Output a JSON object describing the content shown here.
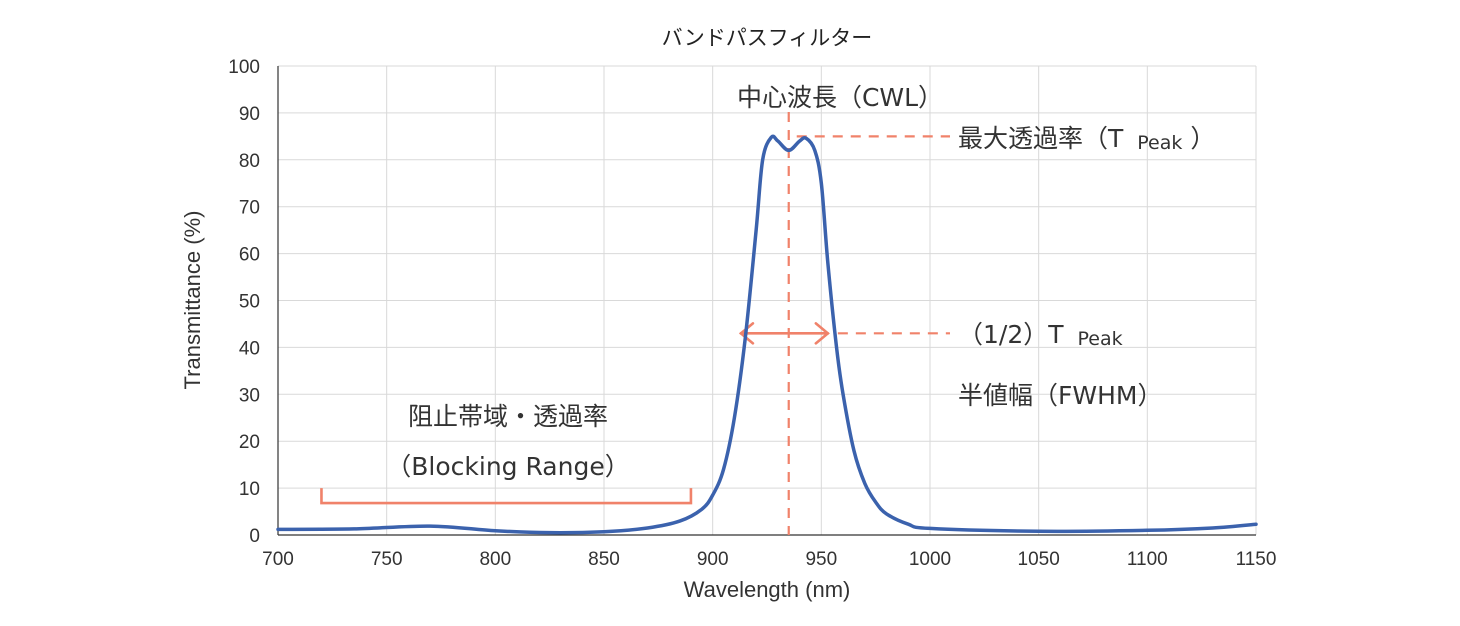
{
  "chart_data": {
    "type": "line",
    "title": "バンドパスフィルター",
    "xlabel": "Wavelength (nm)",
    "ylabel": "Transmittance (%)",
    "xlim": [
      700,
      1150
    ],
    "ylim": [
      0,
      100
    ],
    "x_ticks": [
      700,
      750,
      800,
      850,
      900,
      950,
      1000,
      1050,
      1100,
      1150
    ],
    "y_ticks": [
      0,
      10,
      20,
      30,
      40,
      50,
      60,
      70,
      80,
      90,
      100
    ],
    "x_tick_labels": [
      "700",
      "750",
      "800",
      "850",
      "900",
      "950",
      "1000",
      "1050",
      "1100",
      "1150"
    ],
    "y_tick_labels": [
      "0",
      "10",
      "20",
      "30",
      "40",
      "50",
      "60",
      "70",
      "80",
      "90",
      "100"
    ],
    "grid": true,
    "series": [
      {
        "color": "#3b62ad",
        "x": [
          700,
          735,
          770,
          800,
          825,
          850,
          870,
          885,
          895,
          900,
          905,
          910,
          915,
          920,
          923,
          927,
          930,
          935,
          940,
          943,
          947,
          950,
          953,
          957,
          960,
          965,
          970,
          975,
          980,
          990,
          1000,
          1050,
          1100,
          1130,
          1150
        ],
        "y": [
          1.2,
          1.3,
          1.9,
          0.9,
          0.5,
          0.7,
          1.5,
          3.0,
          5.5,
          8.5,
          14,
          25,
          42,
          65,
          80,
          84.8,
          84,
          82,
          84,
          84.6,
          82,
          75,
          58,
          40,
          30,
          18,
          11,
          7,
          4.5,
          2.3,
          1.4,
          0.8,
          1.0,
          1.5,
          2.3
        ]
      }
    ],
    "annotations": {
      "cwl": "中心波長（CWL）",
      "t_peak_prefix": "最大透過率（T",
      "t_peak_sub": "Peak",
      "t_peak_close": "）",
      "half_peak_prefix": "（1/2）T",
      "half_peak_sub": "Peak",
      "fwhm": "半値幅（FWHM）",
      "blocking_line1": "阻止帯域・透過率",
      "blocking_line2": "（Blocking Range）"
    },
    "markers": {
      "cwl_x": 935,
      "t_peak_y": 85,
      "half_peak_y": 43,
      "fwhm_x": [
        913,
        953
      ],
      "blocking_range": [
        720,
        890
      ],
      "blocking_level": 10
    },
    "colors": {
      "series": "#3b62ad",
      "annotation": "#f0826a",
      "grid": "#d9d9d9"
    }
  }
}
